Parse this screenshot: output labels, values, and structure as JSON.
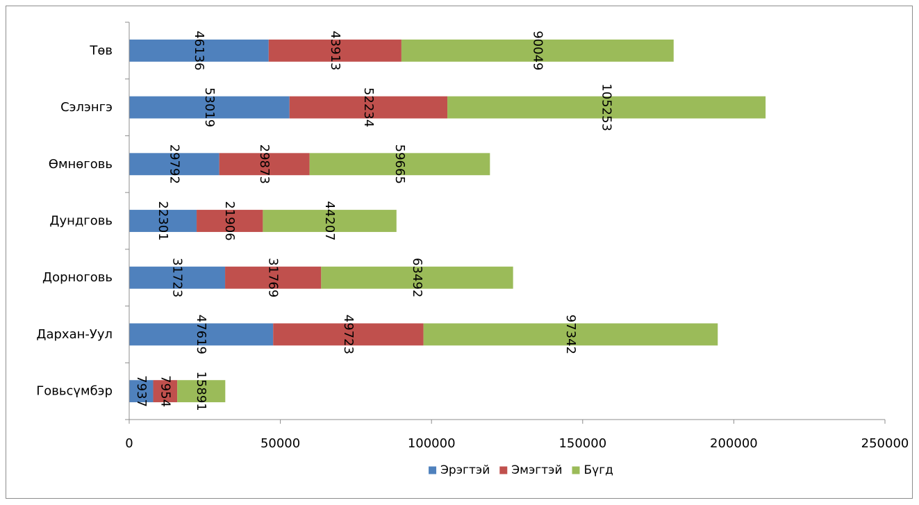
{
  "chart_data": {
    "type": "bar",
    "orientation": "horizontal",
    "stacked": true,
    "title": "",
    "xlabel": "",
    "ylabel": "",
    "xlim": [
      0,
      250000
    ],
    "x_ticks": [
      0,
      50000,
      100000,
      150000,
      200000,
      250000
    ],
    "grid": false,
    "legend_position": "bottom",
    "categories": [
      "Говьсүмбэр",
      "Дархан-Уул",
      "Дорноговь",
      "Дундговь",
      "Өмнөговь",
      "Сэлэнгэ",
      "Төв"
    ],
    "series": [
      {
        "name": "Эрэгтэй",
        "color": "#4F81BD",
        "values": [
          7937,
          47619,
          31723,
          22301,
          29792,
          53019,
          46136
        ]
      },
      {
        "name": "Эмэгтэй",
        "color": "#C0504D",
        "values": [
          7954,
          49723,
          31769,
          21906,
          29873,
          52234,
          43913
        ]
      },
      {
        "name": "Бүгд",
        "color": "#9BBB59",
        "values": [
          15891,
          97342,
          63492,
          44207,
          59665,
          105253,
          90049
        ]
      }
    ]
  }
}
